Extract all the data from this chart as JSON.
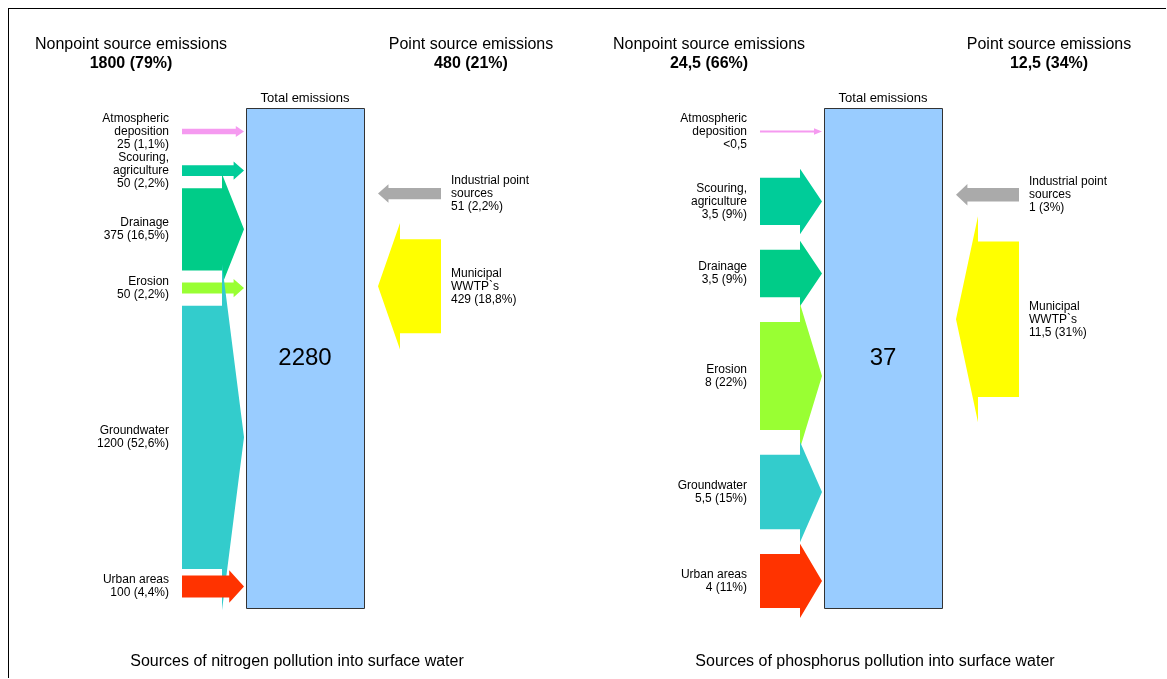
{
  "chart_data": [
    {
      "type": "other",
      "title": "Sources of nitrogen pollution into surface water",
      "categories": [
        "Atmospheric deposition",
        "Scouring, agriculture",
        "Drainage",
        "Erosion",
        "Groundwater",
        "Urban areas",
        "Industrial point sources",
        "Municipal WWTP`s"
      ],
      "series": [
        {
          "name": "Nonpoint source emissions",
          "values": [
            25,
            50,
            375,
            50,
            1200,
            100,
            null,
            null
          ],
          "value_labels": [
            "25 (1,1%)",
            "50 (2,2%)",
            "375 (16,5%)",
            "50 (2,2%)",
            "1200 (52,6%)",
            "100 (4,4%)",
            null,
            null
          ],
          "colors": [
            "#f59af0",
            "#00cc99",
            "#00cc88",
            "#99ff33",
            "#33cccc",
            "#ff3300",
            null,
            null
          ]
        },
        {
          "name": "Point source emissions",
          "values": [
            null,
            null,
            null,
            null,
            null,
            null,
            51,
            429
          ],
          "value_labels": [
            null,
            null,
            null,
            null,
            null,
            null,
            "51 (2,2%)",
            "429 (18,8%)"
          ],
          "colors": [
            null,
            null,
            null,
            null,
            null,
            null,
            "#aaaaaa",
            "#ffff00"
          ]
        }
      ],
      "annotations": [
        "1800 (79%)",
        "480 (21%)",
        "Total emissions",
        "2280"
      ]
    },
    {
      "type": "other",
      "title": "Sources of phosphorus pollution into surface water",
      "categories": [
        "Atmospheric deposition",
        "Scouring, agriculture",
        "Drainage",
        "Erosion",
        "Groundwater",
        "Urban areas",
        "Industrial point sources",
        "Municipal WWTP`s"
      ],
      "series": [
        {
          "name": "Nonpoint source emissions",
          "values": [
            null,
            3.5,
            3.5,
            8,
            5.5,
            4,
            null,
            null
          ],
          "value_labels": [
            "<0,5",
            "3,5 (9%)",
            "3,5 (9%)",
            "8 (22%)",
            "5,5 (15%)",
            "4 (11%)",
            null,
            null
          ],
          "colors": [
            "#f59af0",
            "#00cc99",
            "#00cc88",
            "#99ff33",
            "#33cccc",
            "#ff3300",
            null,
            null
          ]
        },
        {
          "name": "Point source emissions",
          "values": [
            null,
            null,
            null,
            null,
            null,
            null,
            1,
            11.5
          ],
          "value_labels": [
            null,
            null,
            null,
            null,
            null,
            null,
            "1 (3%)",
            "11,5 (31%)"
          ],
          "colors": [
            null,
            null,
            null,
            null,
            null,
            null,
            "#aaaaaa",
            "#ffff00"
          ]
        }
      ],
      "annotations": [
        "24,5 (66%)",
        "12,5 (34%)",
        "Total emissions",
        "37"
      ]
    }
  ]
}
